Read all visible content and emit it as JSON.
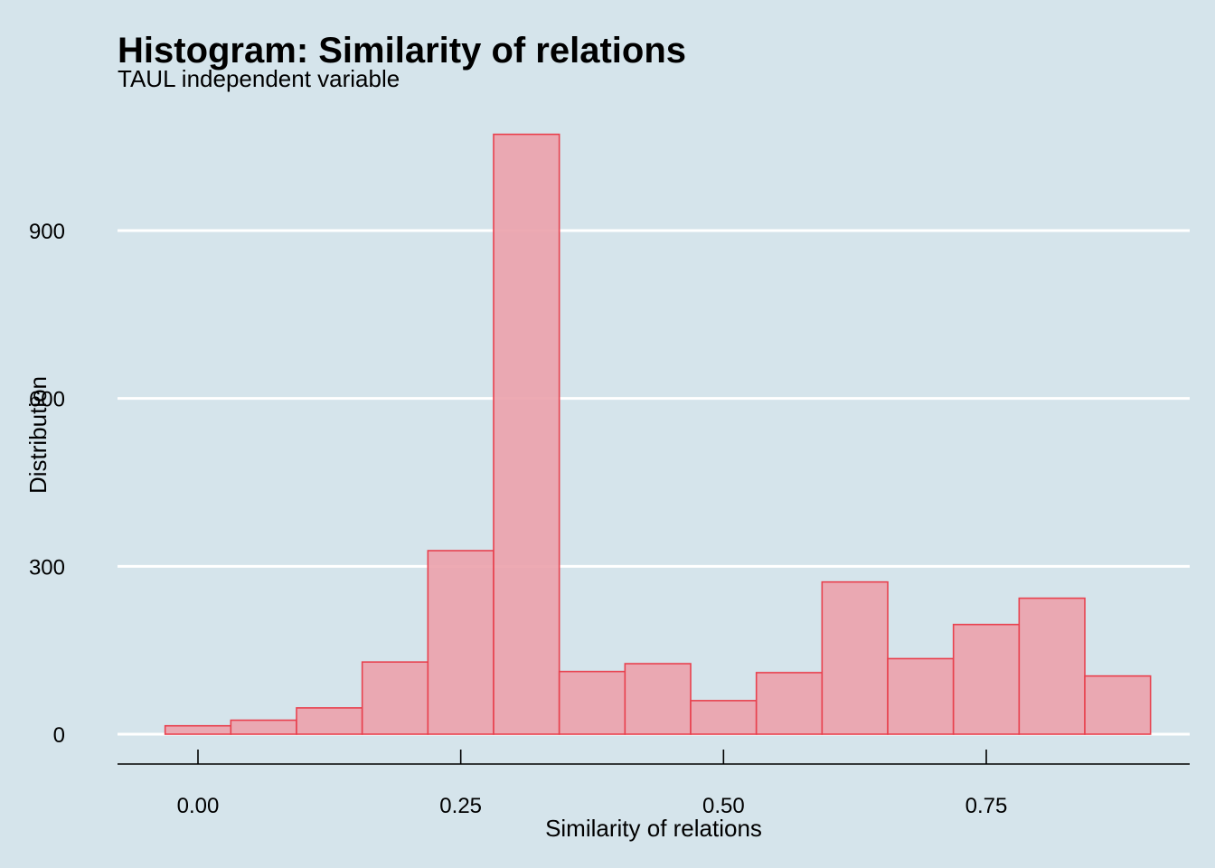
{
  "chart_data": {
    "type": "bar",
    "title": "Histogram: Similarity of relations",
    "subtitle": "TAUL independent variable",
    "xlabel": "Similarity of relations",
    "ylabel": "Distribution",
    "bin_width": 0.0625,
    "bins": [
      {
        "center": 0.0,
        "count": 15
      },
      {
        "center": 0.0625,
        "count": 25
      },
      {
        "center": 0.125,
        "count": 47
      },
      {
        "center": 0.1875,
        "count": 129
      },
      {
        "center": 0.25,
        "count": 328
      },
      {
        "center": 0.3125,
        "count": 1072
      },
      {
        "center": 0.375,
        "count": 112
      },
      {
        "center": 0.4375,
        "count": 126
      },
      {
        "center": 0.5,
        "count": 60
      },
      {
        "center": 0.5625,
        "count": 110
      },
      {
        "center": 0.625,
        "count": 272
      },
      {
        "center": 0.6875,
        "count": 135
      },
      {
        "center": 0.75,
        "count": 196
      },
      {
        "center": 0.8125,
        "count": 243
      },
      {
        "center": 0.875,
        "count": 104
      }
    ],
    "x_ticks": [
      {
        "value": 0.0,
        "label": "0.00"
      },
      {
        "value": 0.25,
        "label": "0.25"
      },
      {
        "value": 0.5,
        "label": "0.50"
      },
      {
        "value": 0.75,
        "label": "0.75"
      }
    ],
    "y_ticks": [
      {
        "value": 0,
        "label": "0"
      },
      {
        "value": 300,
        "label": "300"
      },
      {
        "value": 600,
        "label": "600"
      },
      {
        "value": 900,
        "label": "900"
      }
    ],
    "xlim": [
      -0.077,
      0.943
    ],
    "ylim": [
      0,
      1080
    ],
    "grid": "horizontal-major",
    "colors": {
      "background": "#d5e4eb",
      "bar_fill": "#eba3ac",
      "bar_stroke": "#e8414e",
      "grid": "#ffffff",
      "axis": "#000000"
    }
  }
}
